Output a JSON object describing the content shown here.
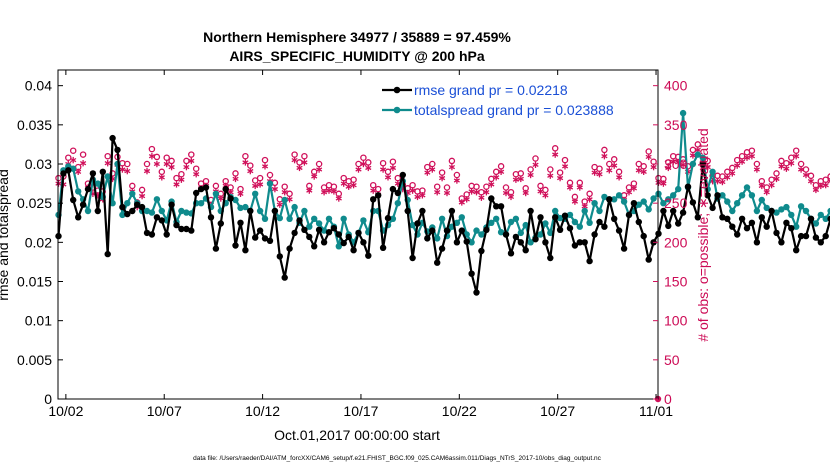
{
  "chart_data": {
    "type": "line",
    "title": "Northern Hemisphere 34977 / 35889 = 97.459%",
    "subtitle": "AIRS_SPECIFIC_HUMIDITY @ 200 hPa",
    "xlabel": "Oct.01,2017 00:00:00 start",
    "ylabel": "rmse and totalspread",
    "ylabel_right": "# of obs: o=possible; ∗=evaluated",
    "footnote": "data file: /Users/raeder/DAI/ATM_forcXX/CAM6_setup/f.e21.FHIST_BGC.f09_025.CAM6assim.011/Diags_NTrS_2017-10/obs_diag_output.nc",
    "x_ticks": [
      "10/02",
      "10/07",
      "10/12",
      "10/17",
      "10/22",
      "10/27",
      "11/01"
    ],
    "x_tick_days": [
      1,
      6,
      11,
      16,
      21,
      26,
      31
    ],
    "xlim": [
      0.6,
      31.1
    ],
    "ylim": [
      0,
      0.042
    ],
    "y_ticks": [
      "0",
      "0.005",
      "0.01",
      "0.015",
      "0.02",
      "0.025",
      "0.03",
      "0.035",
      "0.04"
    ],
    "y_tick_values": [
      0,
      0.005,
      0.01,
      0.015,
      0.02,
      0.025,
      0.03,
      0.035,
      0.04
    ],
    "ylim_right": [
      0,
      420
    ],
    "y_ticks_right": [
      "0",
      "50",
      "100",
      "150",
      "200",
      "250",
      "300",
      "350",
      "400"
    ],
    "y_tick_values_right": [
      0,
      50,
      100,
      150,
      200,
      250,
      300,
      350,
      400
    ],
    "x_step_days": 0.25,
    "x_start_day": 0.625,
    "series": [
      {
        "name": "rmse grand pr = 0.02218",
        "color": "#000000",
        "values": [
          0.0208,
          0.0288,
          0.0292,
          0.0254,
          0.0232,
          0.0248,
          0.0268,
          0.0288,
          0.024,
          0.029,
          0.0185,
          0.0333,
          0.0318,
          0.0245,
          0.0236,
          0.024,
          0.0248,
          0.0245,
          0.0212,
          0.021,
          0.0232,
          0.0228,
          0.021,
          0.0248,
          0.0222,
          0.0217,
          0.0217,
          0.0215,
          0.0263,
          0.0268,
          0.027,
          0.0232,
          0.0192,
          0.0224,
          0.0268,
          0.0256,
          0.0196,
          0.0225,
          0.019,
          0.024,
          0.0206,
          0.0215,
          0.0205,
          0.0202,
          0.024,
          0.0182,
          0.0155,
          0.0192,
          0.0212,
          0.0228,
          0.0216,
          0.0207,
          0.0195,
          0.0216,
          0.02,
          0.0213,
          0.0218,
          0.021,
          0.0199,
          0.0207,
          0.019,
          0.0212,
          0.02,
          0.0183,
          0.0255,
          0.026,
          0.0193,
          0.0231,
          0.0268,
          0.0263,
          0.0286,
          0.024,
          0.018,
          0.0224,
          0.024,
          0.0205,
          0.0215,
          0.0174,
          0.0192,
          0.0215,
          0.024,
          0.02,
          0.0215,
          0.0201,
          0.016,
          0.0136,
          0.0189,
          0.0216,
          0.0256,
          0.0246,
          0.0246,
          0.021,
          0.0186,
          0.0207,
          0.02,
          0.019,
          0.024,
          0.0204,
          0.0232,
          0.02,
          0.018,
          0.0232,
          0.0216,
          0.0234,
          0.0218,
          0.0196,
          0.02,
          0.02,
          0.0176,
          0.021,
          0.0226,
          0.022,
          0.0255,
          0.023,
          0.0215,
          0.0192,
          0.0235,
          0.025,
          0.0226,
          0.0208,
          0.0178,
          0.02,
          0.0211,
          0.024,
          0.0221,
          0.024,
          0.0224,
          0.0238,
          0.0271,
          0.0251,
          0.0232,
          0.03,
          0.026,
          0.0244,
          0.026,
          0.0232,
          0.023,
          0.022,
          0.021,
          0.023,
          0.0218,
          0.0225,
          0.02,
          0.0232,
          0.022,
          0.024,
          0.0212,
          0.02,
          0.0225,
          0.0218,
          0.019,
          0.0208,
          0.0208,
          0.023,
          0.0206,
          0.02,
          0.0208,
          0.023,
          0.0228,
          0.0206,
          0.0198,
          0.02,
          0.0208,
          0.02,
          0.0194,
          0.0208,
          0.0225,
          0.0226,
          0.02,
          0.0198,
          0.0207
        ]
      },
      {
        "name": "totalspread grand pr = 0.023888",
        "color": "#0f8b8d",
        "values": [
          0.0235,
          0.0292,
          0.0297,
          0.0294,
          0.0265,
          0.0255,
          0.024,
          0.028,
          0.0275,
          0.0258,
          0.0284,
          0.025,
          0.03,
          0.0235,
          0.025,
          0.0262,
          0.025,
          0.024,
          0.024,
          0.0238,
          0.0255,
          0.024,
          0.0228,
          0.0252,
          0.0226,
          0.024,
          0.0238,
          0.0237,
          0.025,
          0.025,
          0.0256,
          0.0245,
          0.0262,
          0.024,
          0.025,
          0.0258,
          0.0254,
          0.0244,
          0.0245,
          0.024,
          0.0262,
          0.024,
          0.023,
          0.0275,
          0.024,
          0.0231,
          0.0254,
          0.023,
          0.0245,
          0.0225,
          0.024,
          0.022,
          0.023,
          0.0224,
          0.0215,
          0.023,
          0.022,
          0.0195,
          0.023,
          0.021,
          0.02,
          0.0212,
          0.0228,
          0.0213,
          0.024,
          0.024,
          0.0215,
          0.0222,
          0.023,
          0.025,
          0.0278,
          0.0254,
          0.0222,
          0.021,
          0.0225,
          0.0214,
          0.0219,
          0.0205,
          0.023,
          0.0208,
          0.022,
          0.0225,
          0.0232,
          0.021,
          0.02,
          0.0215,
          0.021,
          0.0219,
          0.0225,
          0.023,
          0.0213,
          0.021,
          0.0226,
          0.023,
          0.0212,
          0.0222,
          0.02,
          0.0206,
          0.021,
          0.0224,
          0.0212,
          0.024,
          0.0231,
          0.023,
          0.0235,
          0.0226,
          0.022,
          0.024,
          0.0225,
          0.025,
          0.024,
          0.0258,
          0.0255,
          0.0255,
          0.026,
          0.0252,
          0.0235,
          0.024,
          0.0248,
          0.0252,
          0.0242,
          0.0256,
          0.0262,
          0.025,
          0.0255,
          0.026,
          0.0268,
          0.0365,
          0.027,
          0.03,
          0.0312,
          0.0308,
          0.0268,
          0.029,
          0.0256,
          0.026,
          0.0252,
          0.024,
          0.025,
          0.026,
          0.027,
          0.026,
          0.024,
          0.0254,
          0.0244,
          0.024,
          0.0238,
          0.0242,
          0.0245,
          0.0235,
          0.022,
          0.0246,
          0.024,
          0.023,
          0.0224,
          0.0235,
          0.023,
          0.024,
          0.0226,
          0.022,
          0.0228,
          0.021,
          0.022,
          0.0212,
          0.023,
          0.0218,
          0.0218,
          0.0246,
          0.0262,
          0.0248,
          0.0246
        ]
      }
    ],
    "obs_possible": [
      282,
      284,
      308,
      317,
      296,
      312,
      275,
      270,
      266,
      265,
      310,
      288,
      309,
      301,
      300,
      272,
      251,
      267,
      300,
      319,
      309,
      290,
      308,
      304,
      282,
      287,
      304,
      312,
      294,
      275,
      278,
      254,
      272,
      262,
      278,
      270,
      288,
      268,
      310,
      298,
      279,
      282,
      305,
      286,
      276,
      255,
      271,
      262,
      312,
      302,
      310,
      272,
      290,
      300,
      270,
      273,
      271,
      262,
      282,
      278,
      280,
      300,
      308,
      302,
      273,
      268,
      301,
      290,
      303,
      282,
      274,
      269,
      273,
      265,
      266,
      296,
      300,
      271,
      289,
      270,
      304,
      286,
      256,
      261,
      272,
      271,
      264,
      271,
      281,
      290,
      297,
      270,
      264,
      287,
      288,
      269,
      293,
      307,
      272,
      267,
      293,
      320,
      289,
      305,
      276,
      258,
      276,
      252,
      262,
      296,
      294,
      318,
      300,
      306,
      290,
      260,
      270,
      275,
      300,
      297,
      316,
      303,
      282,
      281,
      302,
      310,
      309,
      306,
      297,
      318,
      325,
      302,
      304,
      285,
      285,
      284,
      290,
      295,
      305,
      310,
      315,
      317,
      300,
      278,
      270,
      280,
      288,
      304,
      301,
      308,
      317,
      300,
      293,
      285,
      273,
      278,
      280,
      284,
      299,
      306,
      318,
      318,
      312,
      295,
      282,
      282,
      294,
      316,
      305,
      308,
      304,
      300,
      288,
      282,
      279,
      268,
      275
    ],
    "obs_evaluated": [
      275,
      274,
      300,
      305,
      290,
      301,
      270,
      262,
      260,
      255,
      301,
      281,
      299,
      293,
      291,
      265,
      245,
      259,
      291,
      310,
      300,
      283,
      300,
      296,
      274,
      280,
      296,
      304,
      287,
      269,
      272,
      248,
      265,
      256,
      272,
      264,
      281,
      262,
      302,
      291,
      272,
      274,
      297,
      278,
      268,
      248,
      264,
      255,
      305,
      295,
      302,
      266,
      284,
      293,
      264,
      266,
      265,
      256,
      275,
      271,
      273,
      293,
      300,
      295,
      266,
      261,
      293,
      283,
      295,
      275,
      268,
      263,
      266,
      258,
      260,
      289,
      293,
      264,
      282,
      263,
      296,
      279,
      251,
      255,
      265,
      264,
      257,
      264,
      274,
      283,
      290,
      263,
      258,
      280,
      281,
      263,
      286,
      299,
      265,
      260,
      285,
      312,
      282,
      297,
      270,
      252,
      270,
      246,
      255,
      289,
      287,
      310,
      292,
      298,
      283,
      254,
      264,
      269,
      292,
      290,
      309,
      296,
      276,
      275,
      295,
      303,
      302,
      299,
      290,
      311,
      318,
      295,
      296,
      278,
      278,
      277,
      283,
      288,
      298,
      303,
      308,
      310,
      293,
      272,
      264,
      273,
      281,
      297,
      294,
      301,
      310,
      293,
      286,
      278,
      267,
      272,
      273,
      278,
      292,
      299,
      311,
      311,
      305,
      288,
      276,
      276,
      287,
      308,
      298,
      301,
      297,
      293,
      281,
      276,
      272,
      262,
      268
    ],
    "legend_location": "top-right",
    "grid": false
  }
}
